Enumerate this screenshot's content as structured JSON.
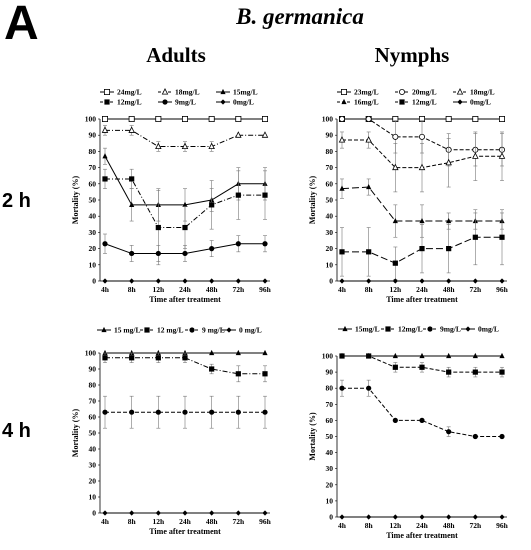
{
  "panel_letter": "A",
  "species": "B. germanica",
  "columns": [
    "Adults",
    "Nymphs"
  ],
  "rows": [
    "2 h",
    "4 h"
  ],
  "chart_data": [
    {
      "type": "line",
      "title": "",
      "xlabel": "Time after treatment",
      "ylabel": "Mortality (%)",
      "x": [
        "4h",
        "8h",
        "12h",
        "24h",
        "48h",
        "72h",
        "96h"
      ],
      "ylim": [
        0,
        100
      ],
      "yticks": [
        0,
        10,
        20,
        30,
        40,
        50,
        60,
        70,
        80,
        90,
        100
      ],
      "legend_position": "top",
      "legend_rows": [
        [
          "24mg/L",
          "18mg/L",
          "15mg/L"
        ],
        [
          "12mg/L",
          "9mg/L",
          "0mg/L"
        ]
      ],
      "series": [
        {
          "name": "24mg/L",
          "marker": "open-square",
          "dash": "solid",
          "values": [
            100,
            100,
            100,
            100,
            100,
            100,
            100
          ],
          "errors": [
            0,
            0,
            0,
            0,
            0,
            0,
            0
          ]
        },
        {
          "name": "18mg/L",
          "marker": "open-triangle",
          "dash": "dashdot",
          "values": [
            93,
            93,
            83,
            83,
            83,
            90,
            90
          ],
          "errors": [
            3,
            3,
            3,
            3,
            3,
            0,
            0
          ]
        },
        {
          "name": "15mg/L",
          "marker": "filled-triangle",
          "dash": "solid",
          "values": [
            77,
            47,
            47,
            47,
            50,
            60,
            60
          ],
          "errors": [
            5,
            10,
            10,
            10,
            7,
            10,
            10
          ]
        },
        {
          "name": "12mg/L",
          "marker": "filled-square",
          "dash": "dashdot",
          "values": [
            63,
            63,
            33,
            33,
            47,
            53,
            53
          ],
          "errors": [
            6,
            6,
            23,
            13,
            15,
            15,
            15
          ]
        },
        {
          "name": "9mg/L",
          "marker": "filled-circle",
          "dash": "solid",
          "values": [
            23,
            17,
            17,
            17,
            20,
            23,
            23
          ],
          "errors": [
            6,
            5,
            5,
            5,
            5,
            5,
            5
          ]
        },
        {
          "name": "0mg/L",
          "marker": "filled-diamond",
          "dash": "solid",
          "values": [
            0,
            0,
            0,
            0,
            0,
            0,
            0
          ],
          "errors": [
            0,
            0,
            0,
            0,
            0,
            0,
            0
          ]
        }
      ]
    },
    {
      "type": "line",
      "title": "",
      "xlabel": "Time after treatment",
      "ylabel": "Mortality (%)",
      "x": [
        "4h",
        "8h",
        "12h",
        "24h",
        "48h",
        "72h",
        "96h"
      ],
      "ylim": [
        0,
        100
      ],
      "yticks": [
        0,
        10,
        20,
        30,
        40,
        50,
        60,
        70,
        80,
        90,
        100
      ],
      "legend_position": "top",
      "legend_rows": [
        [
          "23mg/L",
          "20mg/L",
          "18mg/L"
        ],
        [
          "16mg/L",
          "12mg/L",
          "0mg/L"
        ]
      ],
      "series": [
        {
          "name": "23mg/L",
          "marker": "open-square",
          "dash": "solid",
          "values": [
            100,
            100,
            100,
            100,
            100,
            100,
            100
          ],
          "errors": [
            0,
            0,
            0,
            0,
            0,
            0,
            0
          ]
        },
        {
          "name": "20mg/L",
          "marker": "open-circle",
          "dash": "dashed",
          "values": [
            100,
            100,
            89,
            89,
            81,
            81,
            81
          ],
          "errors": [
            0,
            0,
            10,
            10,
            10,
            10,
            10
          ]
        },
        {
          "name": "18mg/L",
          "marker": "open-triangle",
          "dash": "dashed",
          "values": [
            87,
            87,
            70,
            70,
            73,
            77,
            77
          ],
          "errors": [
            5,
            5,
            15,
            15,
            15,
            15,
            15
          ]
        },
        {
          "name": "16mg/L",
          "marker": "filled-triangle",
          "dash": "longdash",
          "values": [
            57,
            58,
            37,
            37,
            37,
            37,
            37
          ],
          "errors": [
            6,
            5,
            10,
            10,
            5,
            5,
            5
          ]
        },
        {
          "name": "12mg/L",
          "marker": "filled-square",
          "dash": "longdash",
          "values": [
            18,
            18,
            11,
            20,
            20,
            27,
            27
          ],
          "errors": [
            15,
            15,
            10,
            15,
            15,
            17,
            17
          ]
        },
        {
          "name": "0mg/L",
          "marker": "filled-diamond",
          "dash": "solid",
          "values": [
            0,
            0,
            0,
            0,
            0,
            0,
            0
          ],
          "errors": [
            0,
            0,
            0,
            0,
            0,
            0,
            0
          ]
        }
      ]
    },
    {
      "type": "line",
      "title": "",
      "xlabel": "Time after treatment",
      "ylabel": "Mortality (%)",
      "x": [
        "4h",
        "8h",
        "12h",
        "24h",
        "48h",
        "72h",
        "96h"
      ],
      "ylim": [
        0,
        100
      ],
      "yticks": [
        0,
        10,
        20,
        30,
        40,
        50,
        60,
        70,
        80,
        90,
        100
      ],
      "legend_position": "top",
      "legend_rows": [
        [
          "15 mg/L",
          "12 mg/L",
          "9 mg/L",
          "0 mg/L"
        ]
      ],
      "series": [
        {
          "name": "15 mg/L",
          "marker": "filled-triangle",
          "dash": "solid",
          "values": [
            100,
            100,
            100,
            100,
            100,
            100,
            100
          ],
          "errors": [
            0,
            0,
            0,
            0,
            0,
            0,
            0
          ]
        },
        {
          "name": "12 mg/L",
          "marker": "filled-square",
          "dash": "dashdot",
          "values": [
            97,
            97,
            97,
            97,
            90,
            87,
            87
          ],
          "errors": [
            3,
            3,
            3,
            3,
            3,
            5,
            5
          ]
        },
        {
          "name": "9 mg/L",
          "marker": "filled-circle",
          "dash": "dashed",
          "values": [
            63,
            63,
            63,
            63,
            63,
            63,
            63
          ],
          "errors": [
            10,
            10,
            10,
            10,
            10,
            10,
            10
          ]
        },
        {
          "name": "0 mg/L",
          "marker": "filled-diamond",
          "dash": "solid",
          "values": [
            0,
            0,
            0,
            0,
            0,
            0,
            0
          ],
          "errors": [
            0,
            0,
            0,
            0,
            0,
            0,
            0
          ]
        }
      ]
    },
    {
      "type": "line",
      "title": "",
      "xlabel": "Time after treatment",
      "ylabel": "Mortality (%)",
      "x": [
        "4h",
        "8h",
        "12h",
        "24h",
        "48h",
        "72h",
        "96h"
      ],
      "ylim": [
        0,
        100
      ],
      "yticks": [
        0,
        10,
        20,
        30,
        40,
        50,
        60,
        70,
        80,
        90,
        100
      ],
      "legend_position": "top",
      "legend_rows": [
        [
          "15mg/L",
          "12mg/L",
          "9mg/L",
          "0mg/L"
        ]
      ],
      "series": [
        {
          "name": "15mg/L",
          "marker": "filled-triangle",
          "dash": "solid",
          "values": [
            100,
            100,
            100,
            100,
            100,
            100,
            100
          ],
          "errors": [
            0,
            0,
            0,
            0,
            0,
            0,
            0
          ]
        },
        {
          "name": "12mg/L",
          "marker": "filled-square",
          "dash": "dashed",
          "values": [
            100,
            100,
            93,
            93,
            90,
            90,
            90
          ],
          "errors": [
            0,
            0,
            3,
            3,
            3,
            3,
            3
          ]
        },
        {
          "name": "9mg/L",
          "marker": "filled-circle",
          "dash": "dashed",
          "values": [
            80,
            80,
            60,
            60,
            53,
            50,
            50
          ],
          "errors": [
            5,
            5,
            0,
            0,
            3,
            0,
            0
          ]
        },
        {
          "name": "0mg/L",
          "marker": "filled-diamond",
          "dash": "solid",
          "values": [
            0,
            0,
            0,
            0,
            0,
            0,
            0
          ],
          "errors": [
            0,
            0,
            0,
            0,
            0,
            0,
            0
          ]
        }
      ]
    }
  ]
}
